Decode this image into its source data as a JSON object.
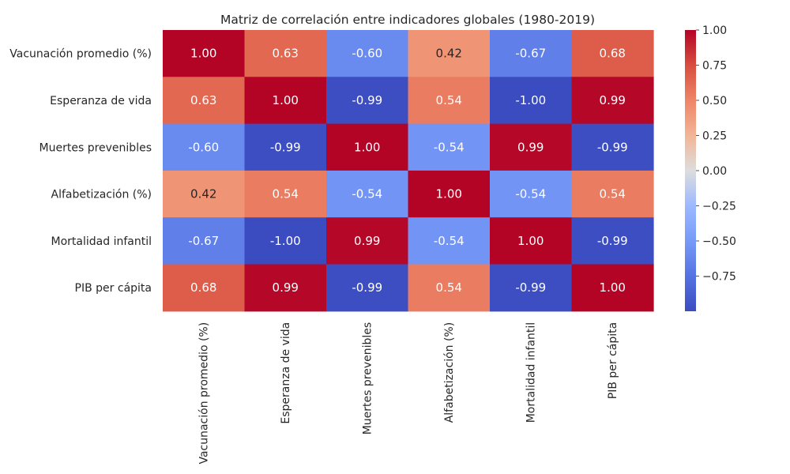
{
  "chart_data": {
    "type": "heatmap",
    "title": "Matriz de correlación entre indicadores globales (1980-2019)",
    "xlabel": "",
    "ylabel": "",
    "row_labels": [
      "Vacunación promedio (%)",
      "Esperanza de vida",
      "Muertes prevenibles",
      "Alfabetización (%)",
      "Mortalidad infantil",
      "PIB per cápita"
    ],
    "col_labels": [
      "Vacunación promedio (%)",
      "Esperanza de vida",
      "Muertes prevenibles",
      "Alfabetización (%)",
      "Mortalidad infantil",
      "PIB per cápita"
    ],
    "values": [
      [
        1.0,
        0.63,
        -0.6,
        0.42,
        -0.67,
        0.68
      ],
      [
        0.63,
        1.0,
        -0.99,
        0.54,
        -1.0,
        0.99
      ],
      [
        -0.6,
        -0.99,
        1.0,
        -0.54,
        0.99,
        -0.99
      ],
      [
        0.42,
        0.54,
        -0.54,
        1.0,
        -0.54,
        0.54
      ],
      [
        -0.67,
        -1.0,
        0.99,
        -0.54,
        1.0,
        -0.99
      ],
      [
        0.68,
        0.99,
        -0.99,
        0.54,
        -0.99,
        1.0
      ]
    ],
    "value_format": "0.00",
    "colormap": "coolwarm",
    "colorbar": {
      "range": [
        -1.0,
        1.0
      ],
      "ticks": [
        1.0,
        0.75,
        0.5,
        0.25,
        0.0,
        -0.25,
        -0.5,
        -0.75
      ],
      "tick_labels": [
        "1.00",
        "0.75",
        "0.50",
        "0.25",
        "0.00",
        "−0.25",
        "−0.50",
        "−0.75"
      ]
    },
    "grid": false,
    "colors": {
      "cold": "#3b4cc0",
      "neutral": "#dddddd",
      "warm": "#b40426",
      "text": "#262626",
      "annotation_text": "#ffffff"
    }
  }
}
